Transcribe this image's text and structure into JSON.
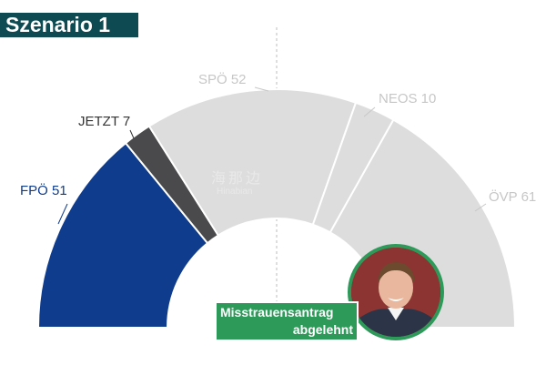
{
  "title": "Szenario 1",
  "watermark": {
    "chinese": "海那边",
    "latin": "Hinabian"
  },
  "callout": {
    "line1": "Misstrauensantrag",
    "line2": "abgelehnt"
  },
  "colors": {
    "FPÖ": "#0f3c8c",
    "JETZT": "#4a4a4c",
    "SPÖ": "#dddddd",
    "NEOS": "#dddddd",
    "ÖVP": "#dddddd",
    "title_bg": "#0e4a52",
    "callout_bg": "#2e9a5a"
  },
  "chart_data": {
    "type": "pie",
    "subtype": "parliament-hemicycle",
    "total_seats": 181,
    "majority_line": true,
    "categories": [
      "FPÖ",
      "JETZT",
      "SPÖ",
      "NEOS",
      "ÖVP"
    ],
    "values": [
      51,
      7,
      52,
      10,
      61
    ],
    "labels": [
      "FPÖ 51",
      "JETZT 7",
      "SPÖ 52",
      "NEOS 10",
      "ÖVP 61"
    ],
    "colors": [
      "#0f3c8c",
      "#4a4a4c",
      "#dddddd",
      "#dddddd",
      "#dddddd"
    ],
    "label_colors": [
      "#0f3c8c",
      "#333333",
      "#c7c7c7",
      "#c7c7c7",
      "#c7c7c7"
    ]
  }
}
